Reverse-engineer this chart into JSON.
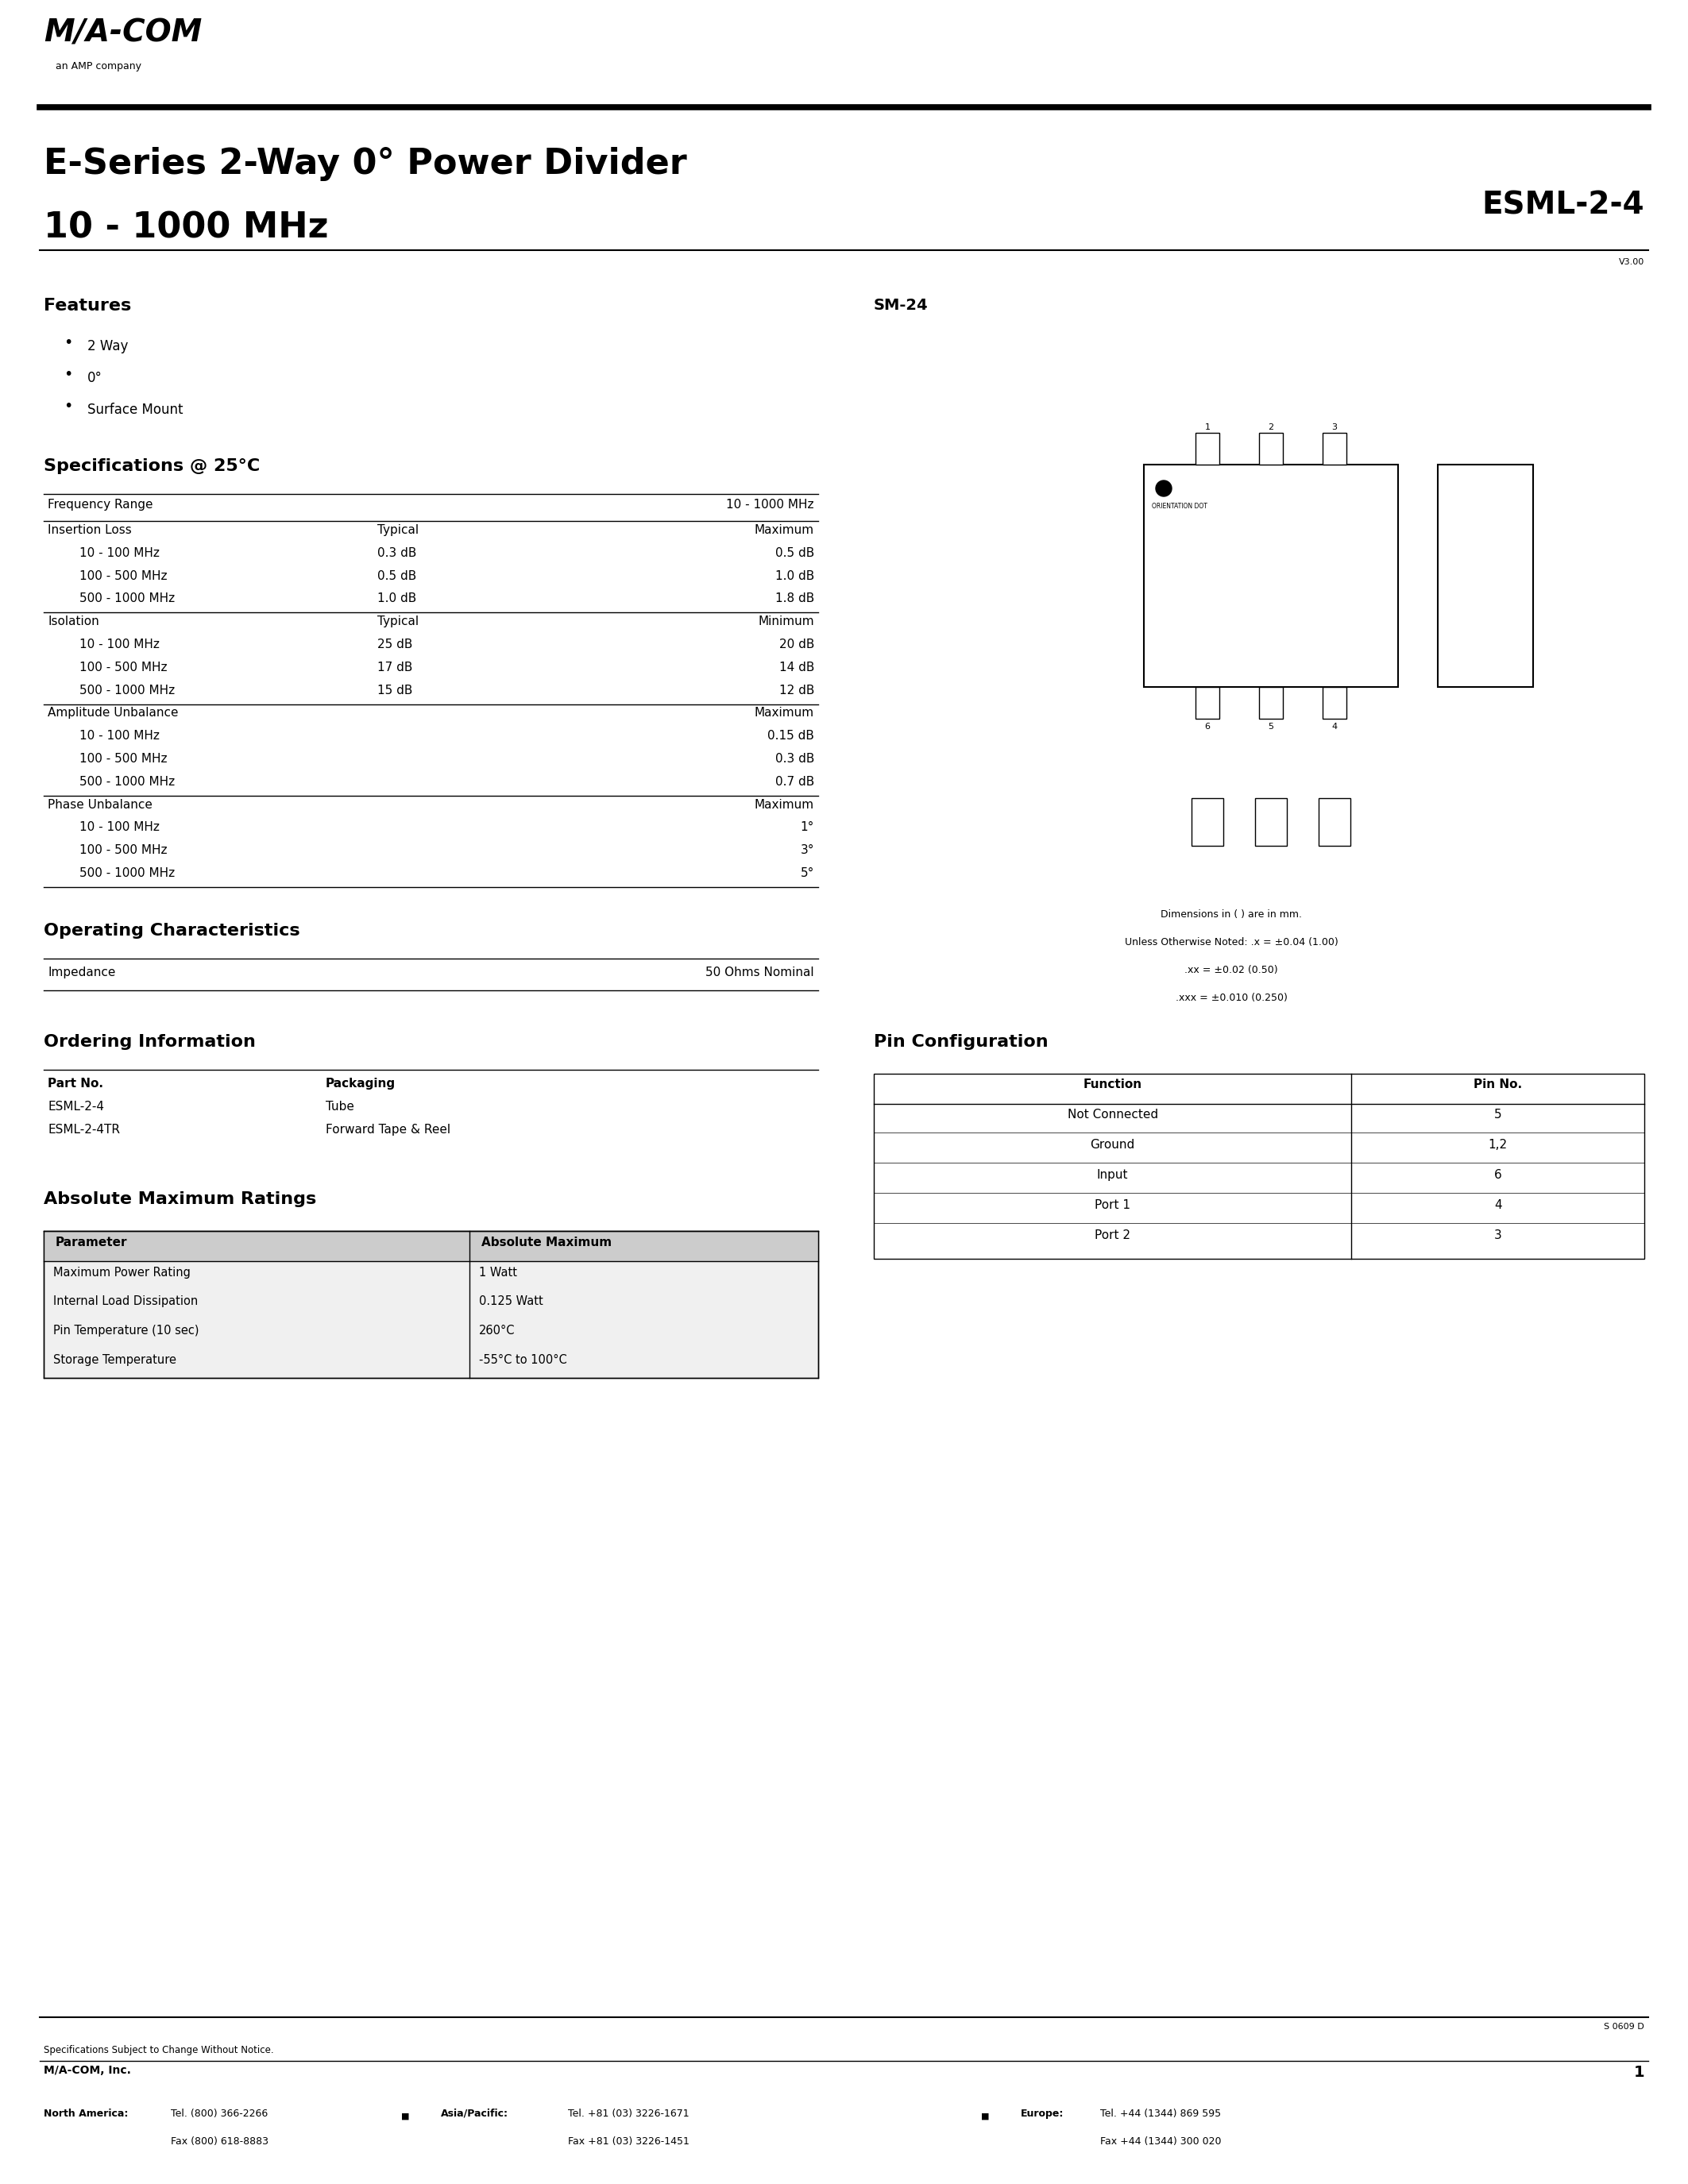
{
  "page_width": 21.25,
  "page_height": 27.5,
  "bg_color": "#ffffff",
  "title_line1": "E-Series 2-Way 0° Power Divider",
  "title_line2": "10 - 1000 MHz",
  "part_number": "ESML-2-4",
  "version": "V3.00",
  "features_title": "Features",
  "features": [
    "2 Way",
    "0°",
    "Surface Mount"
  ],
  "specs_title": "Specifications @ 25°C",
  "freq_range_label": "Frequency Range",
  "freq_range_value": "10 - 1000 MHz",
  "insertion_loss_label": "Insertion Loss",
  "insertion_loss_col2": "Typical",
  "insertion_loss_col3": "Maximum",
  "il_rows": [
    [
      "10 - 100 MHz",
      "0.3 dB",
      "0.5 dB"
    ],
    [
      "100 - 500 MHz",
      "0.5 dB",
      "1.0 dB"
    ],
    [
      "500 - 1000 MHz",
      "1.0 dB",
      "1.8 dB"
    ]
  ],
  "isolation_label": "Isolation",
  "isolation_col2": "Typical",
  "isolation_col3": "Minimum",
  "iso_rows": [
    [
      "10 - 100 MHz",
      "25 dB",
      "20 dB"
    ],
    [
      "100 - 500 MHz",
      "17 dB",
      "14 dB"
    ],
    [
      "500 - 1000 MHz",
      "15 dB",
      "12 dB"
    ]
  ],
  "amp_unbal_label": "Amplitude Unbalance",
  "amp_unbal_col3": "Maximum",
  "amp_rows": [
    [
      "10 - 100 MHz",
      "",
      "0.15 dB"
    ],
    [
      "100 - 500 MHz",
      "",
      "0.3 dB"
    ],
    [
      "500 - 1000 MHz",
      "",
      "0.7 dB"
    ]
  ],
  "phase_unbal_label": "Phase Unbalance",
  "phase_unbal_col3": "Maximum",
  "phase_rows": [
    [
      "10 - 100 MHz",
      "",
      "1°"
    ],
    [
      "100 - 500 MHz",
      "",
      "3°"
    ],
    [
      "500 - 1000 MHz",
      "",
      "5°"
    ]
  ],
  "op_char_title": "Operating Characteristics",
  "impedance_label": "Impedance",
  "impedance_value": "50 Ohms Nominal",
  "ordering_title": "Ordering Information",
  "ordering_col1": "Part No.",
  "ordering_col2": "Packaging",
  "ordering_rows": [
    [
      "ESML-2-4",
      "Tube"
    ],
    [
      "ESML-2-4TR",
      "Forward Tape & Reel"
    ]
  ],
  "abs_max_title": "Absolute Maximum Ratings",
  "abs_max_headers": [
    "Parameter",
    "Absolute Maximum"
  ],
  "abs_max_rows": [
    [
      "Maximum Power Rating",
      "1 Watt"
    ],
    [
      "Internal Load Dissipation",
      "0.125 Watt"
    ],
    [
      "Pin Temperature (10 sec)",
      "260°C"
    ],
    [
      "Storage Temperature",
      "-55°C to 100°C"
    ]
  ],
  "sm24_title": "SM-24",
  "pin_config_title": "Pin Configuration",
  "pin_config_headers": [
    "Function",
    "Pin No."
  ],
  "pin_config_rows": [
    [
      "Not Connected",
      "5"
    ],
    [
      "Ground",
      "1,2"
    ],
    [
      "Input",
      "6"
    ],
    [
      "Port 1",
      "4"
    ],
    [
      "Port 2",
      "3"
    ]
  ],
  "dim_note1": "Dimensions in ( ) are in mm.",
  "dim_note2": "Unless Otherwise Noted: .x = ±0.04 (1.00)",
  "dim_note3": ".xx = ±0.02 (0.50)",
  "dim_note4": ".xxx = ±0.010 (0.250)",
  "footer_note": "Specifications Subject to Change Without Notice.",
  "footer_company": "M/A-COM, Inc.",
  "footer_page": "1",
  "footer_doc": "S 0609 D",
  "na_tel": "Tel. (800) 366-2266",
  "na_fax": "Fax (800) 618-8883",
  "ap_tel": "Tel. +81 (03) 3226-1671",
  "ap_fax": "Fax +81 (03) 3226-1451",
  "eu_tel": "Tel. +44 (1344) 869 595",
  "eu_fax": "Fax +44 (1344) 300 020"
}
